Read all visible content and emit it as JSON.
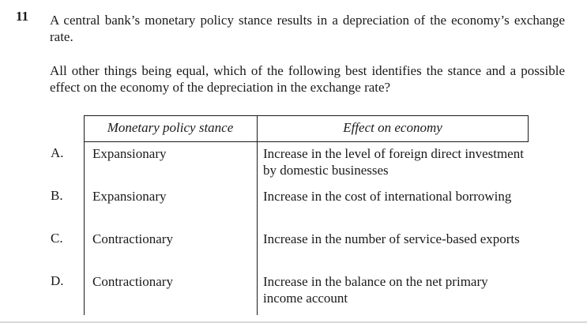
{
  "question": {
    "number": "11",
    "stem_line1": "A central bank’s monetary policy stance results in a depreciation of the economy’s exchange rate.",
    "stem_line2": "All other things being equal, which of the following best identifies the stance and a possible effect on the economy of the depreciation in the exchange rate?"
  },
  "table": {
    "headers": {
      "stance": "Monetary policy stance",
      "effect": "Effect on economy"
    },
    "options": [
      {
        "letter": "A.",
        "stance": "Expansionary",
        "effect": "Increase in the level of foreign direct investment by domestic businesses"
      },
      {
        "letter": "B.",
        "stance": "Expansionary",
        "effect": "Increase in the cost of international borrowing"
      },
      {
        "letter": "C.",
        "stance": "Contractionary",
        "effect": "Increase in the number of service-based exports"
      },
      {
        "letter": "D.",
        "stance": "Contractionary",
        "effect": "Increase in the balance on the net primary income account"
      }
    ]
  }
}
